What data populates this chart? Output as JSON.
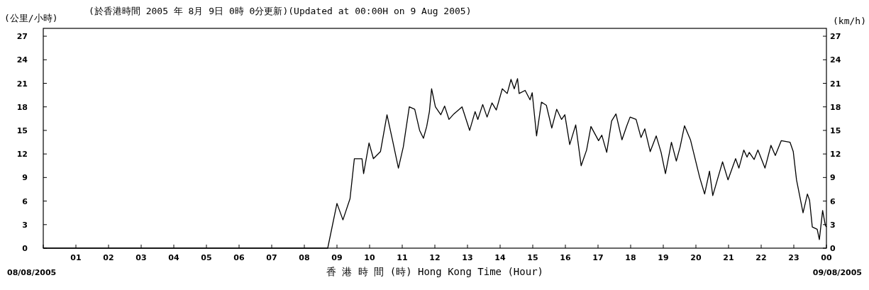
{
  "chart_data": {
    "type": "line",
    "title": "(於香港時間 2005 年 8月 9日 0時 0分更新)(Updated at 00:00H on 9 Aug 2005)",
    "ylabel": "(公里/小時)",
    "y2label": "(km/h)",
    "xlabel": "香 港 時 間 (時) Hong Kong Time (Hour)",
    "annotations": [
      "08/08/2005",
      "09/08/2005"
    ],
    "color": "#000000",
    "x": [
      "2005-08-08T00:00",
      "2005-08-08T08:43",
      "2005-08-08T09:00",
      "2005-08-08T09:11",
      "2005-08-08T09:24",
      "2005-08-08T09:32",
      "2005-08-08T09:46",
      "2005-08-08T09:49",
      "2005-08-08T09:59",
      "2005-08-08T10:07",
      "2005-08-08T10:20",
      "2005-08-08T10:32",
      "2005-08-08T10:42",
      "2005-08-08T10:53",
      "2005-08-08T11:02",
      "2005-08-08T11:13",
      "2005-08-08T11:23",
      "2005-08-08T11:32",
      "2005-08-08T11:39",
      "2005-08-08T11:45",
      "2005-08-08T11:50",
      "2005-08-08T11:54",
      "2005-08-08T12:01",
      "2005-08-08T12:11",
      "2005-08-08T12:18",
      "2005-08-08T12:26",
      "2005-08-08T12:35",
      "2005-08-08T12:50",
      "2005-08-08T13:04",
      "2005-08-08T13:14",
      "2005-08-08T13:19",
      "2005-08-08T13:28",
      "2005-08-08T13:36",
      "2005-08-08T13:45",
      "2005-08-08T13:53",
      "2005-08-08T14:04",
      "2005-08-08T14:13",
      "2005-08-08T14:20",
      "2005-08-08T14:26",
      "2005-08-08T14:32",
      "2005-08-08T14:35",
      "2005-08-08T14:46",
      "2005-08-08T14:55",
      "2005-08-08T14:59",
      "2005-08-08T15:07",
      "2005-08-08T15:16",
      "2005-08-08T15:25",
      "2005-08-08T15:35",
      "2005-08-08T15:44",
      "2005-08-08T15:53",
      "2005-08-08T15:59",
      "2005-08-08T16:08",
      "2005-08-08T16:19",
      "2005-08-08T16:29",
      "2005-08-08T16:39",
      "2005-08-08T16:47",
      "2005-08-08T17:01",
      "2005-08-08T17:07",
      "2005-08-08T17:16",
      "2005-08-08T17:25",
      "2005-08-08T17:33",
      "2005-08-08T17:44",
      "2005-08-08T17:53",
      "2005-08-08T17:59",
      "2005-08-08T18:10",
      "2005-08-08T18:19",
      "2005-08-08T18:26",
      "2005-08-08T18:36",
      "2005-08-08T18:47",
      "2005-08-08T18:56",
      "2005-08-08T19:04",
      "2005-08-08T19:15",
      "2005-08-08T19:24",
      "2005-08-08T19:31",
      "2005-08-08T19:39",
      "2005-08-08T19:50",
      "2005-08-08T20:07",
      "2005-08-08T20:16",
      "2005-08-08T20:25",
      "2005-08-08T20:31",
      "2005-08-08T20:49",
      "2005-08-08T20:59",
      "2005-08-08T21:13",
      "2005-08-08T21:19",
      "2005-08-08T21:28",
      "2005-08-08T21:34",
      "2005-08-08T21:38",
      "2005-08-08T21:47",
      "2005-08-08T21:54",
      "2005-08-08T22:07",
      "2005-08-08T22:18",
      "2005-08-08T22:26",
      "2005-08-08T22:37",
      "2005-08-08T22:53",
      "2005-08-08T22:59",
      "2005-08-08T23:05",
      "2005-08-08T23:17",
      "2005-08-08T23:25",
      "2005-08-08T23:29",
      "2005-08-08T23:34",
      "2005-08-08T23:43",
      "2005-08-08T23:47",
      "2005-08-08T23:53",
      "2005-08-08T23:58",
      "2005-08-09T00:00"
    ],
    "values": [
      0,
      0,
      5.7,
      3.6,
      6.3,
      11.4,
      11.4,
      9.5,
      13.4,
      11.4,
      12.3,
      17.0,
      13.8,
      10.2,
      12.9,
      18.0,
      17.7,
      15.0,
      14.0,
      15.5,
      17.4,
      20.3,
      18.0,
      17.0,
      18.1,
      16.4,
      17.1,
      18.0,
      15.0,
      17.4,
      16.4,
      18.3,
      16.7,
      18.5,
      17.6,
      20.3,
      19.7,
      21.5,
      20.3,
      21.6,
      19.7,
      20.1,
      18.9,
      19.8,
      14.3,
      18.6,
      18.2,
      15.3,
      17.7,
      16.4,
      17.0,
      13.2,
      15.7,
      10.5,
      12.5,
      15.5,
      13.7,
      14.4,
      12.2,
      16.2,
      17.1,
      13.8,
      15.6,
      16.7,
      16.4,
      14.1,
      15.2,
      12.3,
      14.3,
      12.2,
      9.5,
      13.5,
      11.1,
      12.9,
      15.6,
      13.8,
      9.0,
      6.9,
      9.8,
      6.7,
      11.0,
      8.7,
      11.4,
      10.2,
      12.5,
      11.6,
      12.2,
      11.3,
      12.5,
      10.2,
      13.1,
      11.8,
      13.7,
      13.5,
      12.3,
      8.7,
      4.5,
      6.9,
      6.1,
      2.7,
      2.4,
      1.1,
      4.8,
      2.9,
      2.7
    ],
    "xlim": [
      "2005-08-08T00:00",
      "2005-08-09T00:00"
    ],
    "xticks": [
      {
        "value": "2005-08-08T00:00",
        "label": null
      },
      {
        "value": "2005-08-08T01:00",
        "label": "01"
      },
      {
        "value": "2005-08-08T02:00",
        "label": "02"
      },
      {
        "value": "2005-08-08T03:00",
        "label": "03"
      },
      {
        "value": "2005-08-08T04:00",
        "label": "04"
      },
      {
        "value": "2005-08-08T05:00",
        "label": "05"
      },
      {
        "value": "2005-08-08T06:00",
        "label": "06"
      },
      {
        "value": "2005-08-08T07:00",
        "label": "07"
      },
      {
        "value": "2005-08-08T08:00",
        "label": "08"
      },
      {
        "value": "2005-08-08T09:00",
        "label": "09"
      },
      {
        "value": "2005-08-08T10:00",
        "label": "10"
      },
      {
        "value": "2005-08-08T11:00",
        "label": "11"
      },
      {
        "value": "2005-08-08T12:00",
        "label": "12"
      },
      {
        "value": "2005-08-08T13:00",
        "label": "13"
      },
      {
        "value": "2005-08-08T14:00",
        "label": "14"
      },
      {
        "value": "2005-08-08T15:00",
        "label": "15"
      },
      {
        "value": "2005-08-08T16:00",
        "label": "16"
      },
      {
        "value": "2005-08-08T17:00",
        "label": "17"
      },
      {
        "value": "2005-08-08T18:00",
        "label": "18"
      },
      {
        "value": "2005-08-08T19:00",
        "label": "19"
      },
      {
        "value": "2005-08-08T20:00",
        "label": "20"
      },
      {
        "value": "2005-08-08T21:00",
        "label": "21"
      },
      {
        "value": "2005-08-08T22:00",
        "label": "22"
      },
      {
        "value": "2005-08-08T23:00",
        "label": "23"
      },
      {
        "value": "2005-08-09T00:00",
        "label": "00"
      }
    ],
    "ylim": [
      0,
      28
    ],
    "yticks": [
      0,
      3,
      6,
      9,
      12,
      15,
      18,
      21,
      24,
      27
    ],
    "y2lim": [
      0,
      28
    ],
    "y2ticks": [
      0,
      3,
      6,
      9,
      12,
      15,
      18,
      21,
      24,
      27
    ]
  }
}
